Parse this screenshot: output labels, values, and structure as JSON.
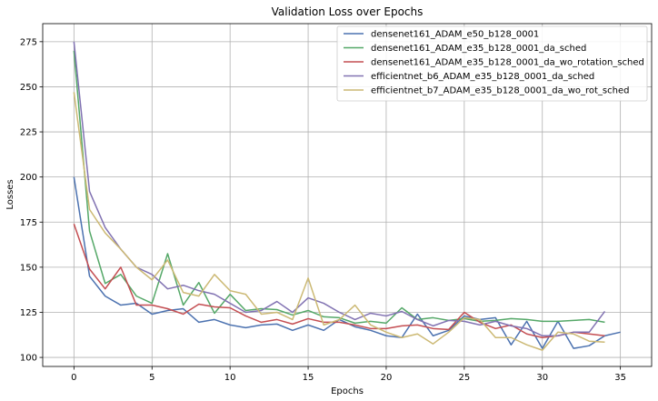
{
  "chart_data": {
    "type": "line",
    "title": "Validation Loss over Epochs",
    "xlabel": "Epochs",
    "ylabel": "Losses",
    "xlim": [
      -2,
      37
    ],
    "ylim": [
      95,
      285
    ],
    "xticks": [
      0,
      5,
      10,
      15,
      20,
      25,
      30,
      35
    ],
    "yticks": [
      100,
      125,
      150,
      175,
      200,
      225,
      250,
      275
    ],
    "grid": true,
    "legend_position": "top-right",
    "series": [
      {
        "name": "densenet161_ADAM_e50_b128_0001",
        "color": "#4c72b0",
        "x": [
          0,
          1,
          2,
          3,
          4,
          5,
          6,
          7,
          8,
          9,
          10,
          11,
          12,
          13,
          14,
          15,
          16,
          17,
          18,
          19,
          20,
          21,
          22,
          23,
          24,
          25,
          26,
          27,
          28,
          29,
          30,
          31,
          32,
          33,
          34,
          35
        ],
        "y": [
          200,
          145,
          134,
          129,
          130,
          124,
          126,
          127,
          119.5,
          121,
          118,
          116.5,
          118,
          118.5,
          115,
          118,
          115,
          121,
          117,
          115,
          112,
          111,
          124,
          112,
          115,
          123,
          121,
          122,
          107,
          120,
          105,
          120,
          105,
          106.5,
          112,
          114
        ]
      },
      {
        "name": "densenet161_ADAM_e35_b128_0001_da_sched",
        "color": "#55a868",
        "x": [
          0,
          1,
          2,
          3,
          4,
          5,
          6,
          7,
          8,
          9,
          10,
          11,
          12,
          13,
          14,
          15,
          16,
          17,
          18,
          19,
          20,
          21,
          22,
          23,
          24,
          25,
          26,
          27,
          28,
          29,
          30,
          31,
          32,
          33,
          34
        ],
        "y": [
          270,
          170,
          141,
          146,
          134,
          130,
          157.5,
          129,
          141.5,
          124.5,
          135,
          126,
          127,
          126.5,
          123.5,
          126,
          122.5,
          122,
          119,
          120,
          119,
          127.5,
          121,
          122,
          120.5,
          121.5,
          120,
          120.5,
          121.5,
          121,
          120,
          120,
          120.5,
          121,
          119.5
        ]
      },
      {
        "name": "densenet161_ADAM_e35_b128_0001_da_wo_rotation_sched",
        "color": "#c44e52",
        "x": [
          0,
          1,
          2,
          3,
          4,
          5,
          6,
          7,
          8,
          9,
          10,
          11,
          12,
          13,
          14,
          15,
          16,
          17,
          18,
          19,
          20,
          21,
          22,
          23,
          24,
          25,
          26,
          27,
          28,
          29,
          30,
          31,
          32,
          33,
          34
        ],
        "y": [
          174,
          149,
          138,
          150,
          129,
          129,
          127,
          124,
          129.5,
          128,
          127.5,
          123,
          119.5,
          121,
          118.5,
          121.5,
          119.5,
          119.5,
          118,
          116,
          116,
          117.5,
          118,
          116,
          115.5,
          125,
          119.5,
          116,
          118,
          113,
          111,
          112,
          114,
          113,
          112
        ]
      },
      {
        "name": "efficientnet_b6_ADAM_e35_b128_0001_da_sched",
        "color": "#8172b2",
        "x": [
          0,
          1,
          2,
          3,
          4,
          5,
          6,
          7,
          8,
          9,
          10,
          11,
          12,
          13,
          14,
          15,
          16,
          17,
          18,
          19,
          20,
          21,
          22,
          23,
          24,
          25,
          26,
          27,
          28,
          29,
          30,
          31,
          32,
          33,
          34
        ],
        "y": [
          275,
          192,
          172,
          160,
          150,
          146,
          138,
          140,
          137,
          135,
          130,
          125,
          126,
          131,
          125,
          133,
          130,
          125,
          121,
          124.5,
          123,
          125.5,
          121,
          117.5,
          120.5,
          120,
          118,
          120,
          117.5,
          116,
          112,
          112,
          114,
          114,
          125.5
        ]
      },
      {
        "name": "efficientnet_b7_ADAM_e35_b128_0001_da_wo_rot_sched",
        "color": "#ccb974",
        "x": [
          0,
          1,
          2,
          3,
          4,
          5,
          6,
          7,
          8,
          9,
          10,
          11,
          12,
          13,
          14,
          15,
          16,
          17,
          18,
          19,
          20,
          21,
          22,
          23,
          24,
          25,
          26,
          27,
          28,
          29,
          30,
          31,
          32,
          33,
          34
        ],
        "y": [
          247,
          182,
          169,
          160,
          150,
          143,
          154,
          136,
          134,
          146,
          137,
          135,
          124,
          125,
          121,
          144,
          118,
          121,
          129,
          118,
          114,
          111,
          113,
          107.5,
          114,
          122,
          121,
          111,
          111,
          107,
          104,
          114,
          113,
          109,
          108.5
        ]
      }
    ]
  }
}
